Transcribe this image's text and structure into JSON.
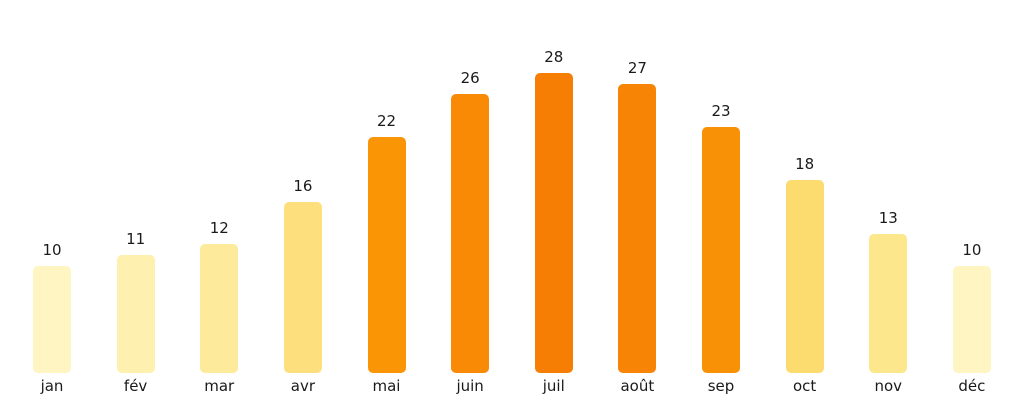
{
  "chart_data": {
    "type": "bar",
    "title": "",
    "xlabel": "",
    "ylabel": "",
    "categories": [
      "jan",
      "fév",
      "mar",
      "avr",
      "mai",
      "juin",
      "juil",
      "août",
      "sep",
      "oct",
      "nov",
      "déc"
    ],
    "values": [
      10,
      11,
      12,
      16,
      22,
      26,
      28,
      27,
      23,
      18,
      13,
      10
    ],
    "bar_colors": [
      "#FEF5C3",
      "#FEF0AE",
      "#FDEB9B",
      "#FDDF7E",
      "#FA9506",
      "#F88A06",
      "#F67E04",
      "#F78405",
      "#F99106",
      "#FCDC6E",
      "#FDE78D",
      "#FEF5C3"
    ],
    "ylim": [
      0,
      28
    ],
    "value_labels_shown": true,
    "grid": false,
    "legend": false,
    "axes_shown": false,
    "background_color": "#FFFFFF",
    "text_color": "#1A1A1A"
  }
}
